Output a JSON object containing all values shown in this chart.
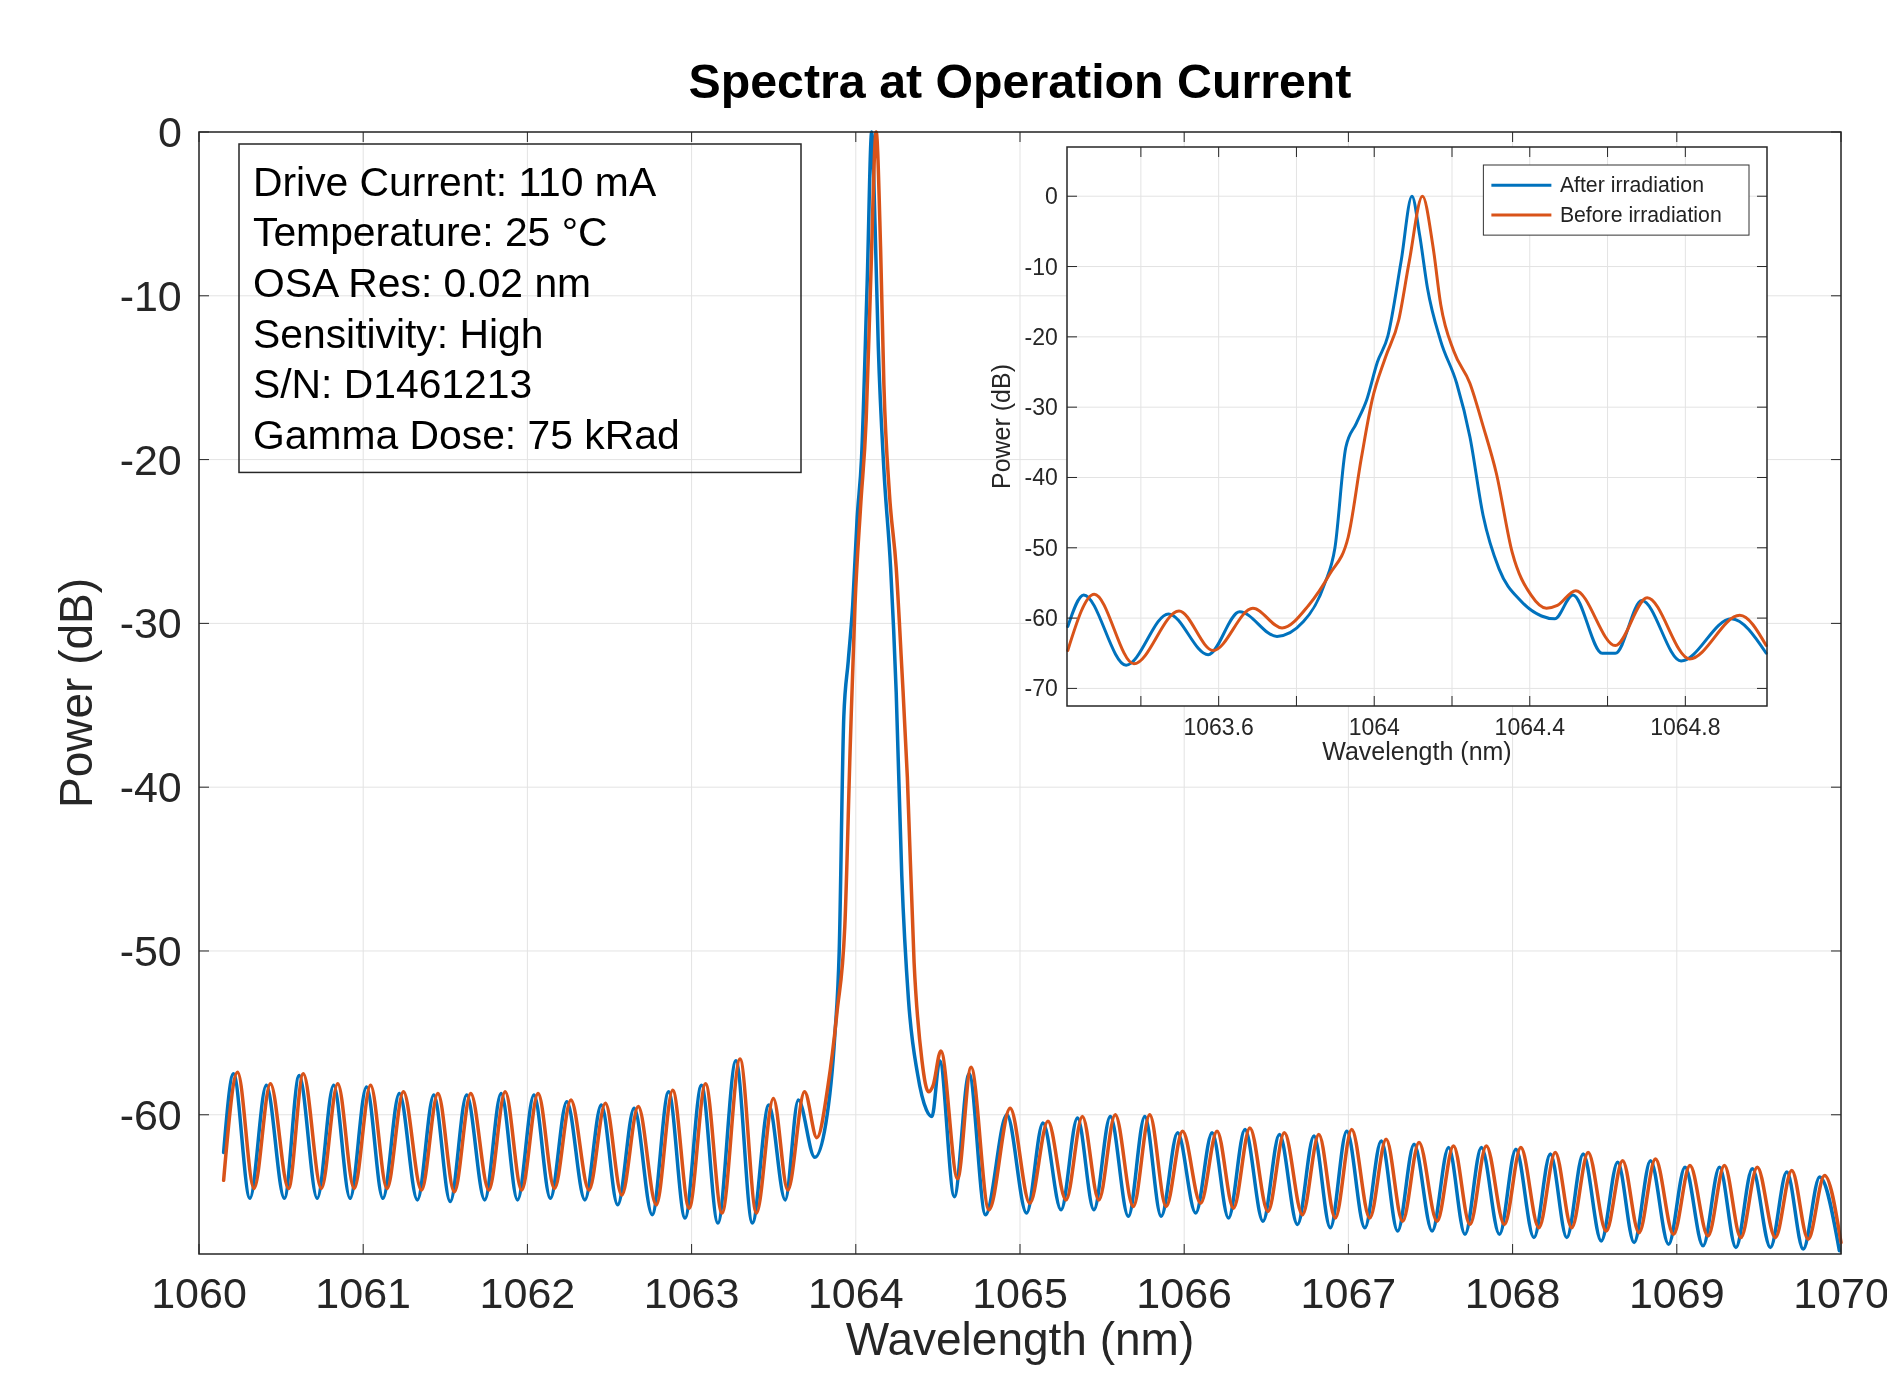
{
  "chart_data": [
    {
      "type": "line",
      "title": "Spectra at Operation Current",
      "xlabel": "Wavelength (nm)",
      "ylabel": "Power (dB)",
      "xlim": [
        1060,
        1070
      ],
      "ylim": [
        -68.5,
        0
      ],
      "xticks": [
        1060,
        1061,
        1062,
        1063,
        1064,
        1065,
        1066,
        1067,
        1068,
        1069,
        1070
      ],
      "yticks": [
        0,
        -10,
        -20,
        -30,
        -40,
        -50,
        -60
      ],
      "grid": true,
      "legend": false,
      "annotations": [
        "Drive Current: 110 mA",
        "Temperature: 25 °C",
        "OSA Res: 0.02 nm",
        "Sensitivity: High",
        "S/N: D1461213",
        "Gamma Dose: 75 kRad"
      ],
      "series": [
        {
          "color": "#0072bd",
          "x": [
            1060.15,
            1060.21,
            1060.31,
            1060.41,
            1060.52,
            1060.61,
            1060.72,
            1060.82,
            1060.92,
            1061.02,
            1061.12,
            1061.22,
            1061.33,
            1061.43,
            1061.53,
            1061.63,
            1061.74,
            1061.84,
            1061.94,
            1062.04,
            1062.14,
            1062.24,
            1062.35,
            1062.45,
            1062.55,
            1062.65,
            1062.76,
            1062.86,
            1062.96,
            1063.06,
            1063.16,
            1063.27,
            1063.37,
            1063.47,
            1063.57,
            1063.65,
            1063.75,
            1063.818,
            1063.872,
            1063.899,
            1063.927,
            1063.954,
            1063.981,
            1064.008,
            1064.035,
            1064.069,
            1064.097,
            1064.117,
            1064.137,
            1064.171,
            1064.212,
            1064.246,
            1064.28,
            1064.321,
            1064.376,
            1064.43,
            1064.464,
            1064.511,
            1064.6,
            1064.69,
            1064.79,
            1064.92,
            1065.04,
            1065.14,
            1065.25,
            1065.35,
            1065.45,
            1065.55,
            1065.66,
            1065.76,
            1065.86,
            1065.96,
            1066.07,
            1066.17,
            1066.27,
            1066.37,
            1066.48,
            1066.58,
            1066.69,
            1066.79,
            1066.89,
            1066.99,
            1067.1,
            1067.2,
            1067.3,
            1067.4,
            1067.51,
            1067.61,
            1067.71,
            1067.81,
            1067.92,
            1068.02,
            1068.13,
            1068.23,
            1068.33,
            1068.43,
            1068.54,
            1068.64,
            1068.74,
            1068.84,
            1068.95,
            1069.05,
            1069.16,
            1069.26,
            1069.36,
            1069.46,
            1069.57,
            1069.67,
            1069.77,
            1069.87,
            1069.99
          ],
          "values": [
            -62.3,
            -57.5,
            -65.1,
            -58.2,
            -65.1,
            -57.6,
            -65.1,
            -58.2,
            -65.1,
            -58.3,
            -65.1,
            -58.7,
            -65.2,
            -58.8,
            -65.3,
            -58.8,
            -65.2,
            -58.7,
            -65.2,
            -58.8,
            -65.1,
            -59.2,
            -65.2,
            -59.4,
            -65.5,
            -59.6,
            -66.1,
            -58.6,
            -66.3,
            -58.2,
            -66.6,
            -56.7,
            -66.6,
            -59.4,
            -65.2,
            -59.1,
            -62.6,
            -60.5,
            -55.2,
            -50,
            -35.7,
            -32.3,
            -28.9,
            -23.6,
            -19.9,
            -9.3,
            0,
            -5.6,
            -13.1,
            -20.6,
            -26.6,
            -34.2,
            -45.4,
            -53,
            -57.5,
            -59.7,
            -60.1,
            -56.7,
            -65,
            -57.5,
            -66.1,
            -60,
            -66,
            -60.5,
            -65.8,
            -60.2,
            -65.8,
            -60.1,
            -66.2,
            -60.1,
            -66.2,
            -61.1,
            -66,
            -61.1,
            -66.3,
            -60.9,
            -66.5,
            -61.2,
            -66.7,
            -61.3,
            -66.9,
            -61,
            -66.9,
            -61.6,
            -67.1,
            -61.8,
            -67.1,
            -62,
            -67.3,
            -62,
            -67.3,
            -62.1,
            -67.5,
            -62.4,
            -67.5,
            -62.4,
            -67.7,
            -62.9,
            -67.8,
            -62.8,
            -67.9,
            -63.2,
            -68,
            -63.2,
            -68.1,
            -63.3,
            -68.1,
            -63.5,
            -68.2,
            -63.8,
            -68.3
          ]
        },
        {
          "color": "#d95319",
          "x": [
            1060.15,
            1060.235,
            1060.335,
            1060.435,
            1060.545,
            1060.635,
            1060.745,
            1060.845,
            1060.945,
            1061.045,
            1061.145,
            1061.245,
            1061.355,
            1061.455,
            1061.555,
            1061.655,
            1061.765,
            1061.865,
            1061.965,
            1062.065,
            1062.165,
            1062.265,
            1062.375,
            1062.475,
            1062.575,
            1062.675,
            1062.785,
            1062.885,
            1062.985,
            1063.085,
            1063.185,
            1063.295,
            1063.395,
            1063.498,
            1063.586,
            1063.688,
            1063.763,
            1063.831,
            1063.886,
            1063.933,
            1063.967,
            1063.995,
            1064.029,
            1064.063,
            1064.09,
            1064.124,
            1064.151,
            1064.171,
            1064.205,
            1064.246,
            1064.28,
            1064.314,
            1064.355,
            1064.403,
            1064.443,
            1064.471,
            1064.518,
            1064.62,
            1064.702,
            1064.811,
            1064.94,
            1065.06,
            1065.17,
            1065.28,
            1065.38,
            1065.48,
            1065.58,
            1065.69,
            1065.79,
            1065.89,
            1065.99,
            1066.1,
            1066.2,
            1066.3,
            1066.4,
            1066.51,
            1066.61,
            1066.72,
            1066.82,
            1066.92,
            1067.02,
            1067.13,
            1067.23,
            1067.33,
            1067.43,
            1067.54,
            1067.64,
            1067.74,
            1067.84,
            1067.95,
            1068.05,
            1068.16,
            1068.26,
            1068.36,
            1068.46,
            1068.57,
            1068.67,
            1068.77,
            1068.87,
            1068.98,
            1069.08,
            1069.19,
            1069.29,
            1069.39,
            1069.49,
            1069.6,
            1069.7,
            1069.8,
            1069.9,
            1070
          ],
          "values": [
            -64,
            -57.4,
            -64.5,
            -58.1,
            -64.5,
            -57.5,
            -64.5,
            -58.1,
            -64.5,
            -58.2,
            -64.5,
            -58.6,
            -64.6,
            -58.7,
            -64.7,
            -58.7,
            -64.6,
            -58.6,
            -64.6,
            -58.7,
            -64.5,
            -59.1,
            -64.6,
            -59.3,
            -64.9,
            -59.5,
            -65.5,
            -58.5,
            -65.7,
            -58.1,
            -66,
            -56.6,
            -66,
            -59,
            -64.6,
            -58.6,
            -61.4,
            -58.2,
            -53.7,
            -48.5,
            -37.2,
            -28.9,
            -22.9,
            -17.6,
            -9.3,
            0,
            -7.1,
            -15.4,
            -22.1,
            -26.6,
            -32.7,
            -39.4,
            -50.7,
            -56.7,
            -58.6,
            -58.2,
            -56.1,
            -63.9,
            -57.1,
            -65.8,
            -59.6,
            -65.4,
            -60.4,
            -65.2,
            -60.1,
            -65.2,
            -60,
            -65.6,
            -60,
            -65.6,
            -61,
            -65.4,
            -61,
            -65.7,
            -60.8,
            -65.9,
            -61.1,
            -66.1,
            -61.2,
            -66.3,
            -60.9,
            -66.3,
            -61.5,
            -66.5,
            -61.7,
            -66.5,
            -61.9,
            -66.7,
            -61.9,
            -66.7,
            -62,
            -66.9,
            -62.3,
            -66.9,
            -62.3,
            -67.1,
            -62.8,
            -67.2,
            -62.7,
            -67.3,
            -63.1,
            -67.4,
            -63.1,
            -67.5,
            -63.2,
            -67.5,
            -63.4,
            -67.6,
            -63.7,
            -67.8
          ]
        }
      ]
    },
    {
      "type": "line",
      "xlabel": "Wavelength (nm)",
      "ylabel": "Power (dB)",
      "xlim": [
        1063.21,
        1065.01
      ],
      "ylim": [
        -72.5,
        7
      ],
      "xticks": [
        {
          "value": 1063.4,
          "label": null
        },
        1063.6,
        {
          "value": 1063.8,
          "label": null
        },
        1064,
        {
          "value": 1064.2,
          "label": null
        },
        1064.4,
        {
          "value": 1064.6,
          "label": null
        },
        1064.8
      ],
      "yticks": [
        0,
        -10,
        -20,
        -30,
        -40,
        -50,
        -60,
        -70
      ],
      "grid": true,
      "legend": "top right",
      "series": [
        {
          "name": "After irradiation",
          "color": "#0072bd",
          "x": [
            1063.212,
            1063.253,
            1063.362,
            1063.471,
            1063.573,
            1063.654,
            1063.75,
            1063.818,
            1063.872,
            1063.899,
            1063.927,
            1063.954,
            1063.981,
            1064.008,
            1064.035,
            1064.069,
            1064.097,
            1064.117,
            1064.137,
            1064.171,
            1064.212,
            1064.246,
            1064.28,
            1064.321,
            1064.376,
            1064.43,
            1064.464,
            1064.511,
            1064.586,
            1064.62,
            1064.688,
            1064.789,
            1064.918,
            1065.008
          ],
          "values": [
            -61.2,
            -56.7,
            -66.7,
            -59.4,
            -65.2,
            -59.1,
            -62.6,
            -60.5,
            -55.2,
            -50,
            -35.7,
            -32.3,
            -28.9,
            -23.6,
            -19.9,
            -9.3,
            0,
            -5.6,
            -13.1,
            -20.6,
            -26.6,
            -34.2,
            -45.4,
            -53,
            -57.5,
            -59.7,
            -60.1,
            -56.7,
            -65,
            -65,
            -57.5,
            -66.1,
            -60.1,
            -65
          ]
        },
        {
          "name": "Before irradiation",
          "color": "#d95319",
          "x": [
            1063.212,
            1063.28,
            1063.382,
            1063.498,
            1063.586,
            1063.688,
            1063.763,
            1063.831,
            1063.886,
            1063.933,
            1063.967,
            1063.995,
            1064.029,
            1064.063,
            1064.09,
            1064.124,
            1064.151,
            1064.171,
            1064.205,
            1064.246,
            1064.28,
            1064.314,
            1064.355,
            1064.403,
            1064.443,
            1064.471,
            1064.518,
            1064.62,
            1064.702,
            1064.811,
            1064.94,
            1065.008
          ],
          "values": [
            -64.6,
            -56.6,
            -66.5,
            -59,
            -64.6,
            -58.6,
            -61.4,
            -58.2,
            -53.7,
            -48.5,
            -37.2,
            -28.9,
            -22.9,
            -17.6,
            -9.3,
            0,
            -7.1,
            -15.4,
            -22.1,
            -26.6,
            -32.7,
            -39.4,
            -50.7,
            -56.7,
            -58.6,
            -58.2,
            -56.1,
            -63.9,
            -57.1,
            -65.8,
            -59.6,
            -63.9
          ]
        }
      ]
    }
  ]
}
